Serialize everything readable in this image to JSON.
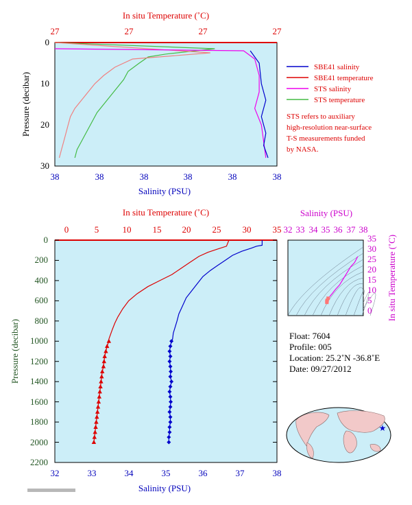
{
  "chart_data": [
    {
      "type": "line",
      "title": "",
      "top_axis": {
        "label": "In situ Temperature (˚C)",
        "ticks": [
          "27",
          "27",
          "27",
          "27"
        ]
      },
      "bottom_axis": {
        "label": "Salinity (PSU)",
        "ticks": [
          "38",
          "38",
          "38",
          "38",
          "38",
          "38"
        ]
      },
      "ylabel": "Pressure (decibar)",
      "ylim": [
        30,
        0
      ],
      "yticks": [
        "0",
        "10",
        "20",
        "30"
      ],
      "grid": false,
      "legend_position": "right",
      "legend": [
        {
          "name": "SBE41 salinity",
          "color": "#0000cc"
        },
        {
          "name": "SBE41 temperature",
          "color": "#dd0000"
        },
        {
          "name": "STS salinity",
          "color": "#ee00ee"
        },
        {
          "name": "STS temperature",
          "color": "#44bb44"
        }
      ],
      "note": [
        "STS refers to auxiliary",
        "high-resolution near-surface",
        "T-S measurements funded",
        "by NASA."
      ],
      "series": [
        {
          "name": "STS temperature",
          "color": "#44bb44",
          "points": [
            [
              0.0,
              0
            ],
            [
              0.72,
              1.5
            ],
            [
              0.5,
              2.8
            ],
            [
              0.42,
              3.5
            ],
            [
              0.38,
              5
            ],
            [
              0.33,
              7
            ],
            [
              0.31,
              9
            ],
            [
              0.28,
              11
            ],
            [
              0.25,
              13
            ],
            [
              0.22,
              15
            ],
            [
              0.19,
              17
            ],
            [
              0.17,
              19
            ],
            [
              0.15,
              21
            ],
            [
              0.12,
              24
            ],
            [
              0.1,
              26
            ],
            [
              0.09,
              28
            ]
          ]
        },
        {
          "name": "SBE41 temperature",
          "color": "#f08080",
          "points": [
            [
              0.0,
              0
            ],
            [
              0.7,
              2.5
            ],
            [
              0.35,
              4
            ],
            [
              0.27,
              6
            ],
            [
              0.22,
              8
            ],
            [
              0.18,
              10
            ],
            [
              0.15,
              12
            ],
            [
              0.12,
              14
            ],
            [
              0.09,
              16
            ],
            [
              0.07,
              18
            ],
            [
              0.06,
              20
            ],
            [
              0.05,
              22
            ],
            [
              0.04,
              24
            ],
            [
              0.03,
              26
            ],
            [
              0.02,
              28
            ]
          ]
        },
        {
          "name": "STS salinity",
          "color": "#ee00ee",
          "points": [
            [
              0.0,
              1.5
            ],
            [
              0.85,
              2
            ],
            [
              0.9,
              4
            ],
            [
              0.92,
              8
            ],
            [
              0.92,
              12
            ],
            [
              0.9,
              16
            ],
            [
              0.93,
              20
            ],
            [
              0.94,
              24
            ],
            [
              0.95,
              28
            ]
          ]
        },
        {
          "name": "SBE41 salinity",
          "color": "#0000cc",
          "points": [
            [
              0.88,
              2
            ],
            [
              0.92,
              5
            ],
            [
              0.93,
              10
            ],
            [
              0.95,
              14
            ],
            [
              0.93,
              18
            ],
            [
              0.95,
              22
            ],
            [
              0.94,
              25
            ],
            [
              0.96,
              28
            ]
          ]
        }
      ]
    },
    {
      "type": "line",
      "title": "",
      "top_axis": {
        "label": "In situ Temperature (˚C)",
        "range": [
          -2,
          35
        ],
        "ticks": [
          0,
          5,
          10,
          15,
          20,
          25,
          30,
          35
        ]
      },
      "bottom_axis": {
        "label": "Salinity (PSU)",
        "range": [
          32,
          38
        ],
        "ticks": [
          32,
          33,
          34,
          35,
          36,
          37,
          38
        ]
      },
      "ylabel": "Pressure (decibar)",
      "ylim": [
        2200,
        0
      ],
      "yticks": [
        0,
        200,
        400,
        600,
        800,
        1000,
        1200,
        1400,
        1600,
        1800,
        2000,
        2200
      ],
      "grid": false,
      "series": [
        {
          "name": "Temperature",
          "color": "#dd0000",
          "points": [
            [
              27.0,
              0
            ],
            [
              26.6,
              60
            ],
            [
              25.0,
              90
            ],
            [
              23.5,
              120
            ],
            [
              22.0,
              160
            ],
            [
              20.5,
              220
            ],
            [
              19.0,
              280
            ],
            [
              17.5,
              340
            ],
            [
              15.5,
              400
            ],
            [
              13.5,
              460
            ],
            [
              11.7,
              530
            ],
            [
              10.3,
              600
            ],
            [
              9.3,
              680
            ],
            [
              8.5,
              760
            ],
            [
              8.0,
              820
            ],
            [
              7.6,
              880
            ],
            [
              7.3,
              930
            ],
            [
              7.0,
              980
            ]
          ],
          "markers": [
            [
              7.0,
              1000
            ],
            [
              6.7,
              1050
            ],
            [
              6.5,
              1100
            ],
            [
              6.3,
              1150
            ],
            [
              6.2,
              1200
            ],
            [
              6.1,
              1250
            ],
            [
              5.9,
              1300
            ],
            [
              5.8,
              1350
            ],
            [
              5.7,
              1400
            ],
            [
              5.6,
              1450
            ],
            [
              5.5,
              1500
            ],
            [
              5.4,
              1550
            ],
            [
              5.3,
              1600
            ],
            [
              5.2,
              1650
            ],
            [
              5.1,
              1700
            ],
            [
              5.0,
              1750
            ],
            [
              4.9,
              1800
            ],
            [
              4.8,
              1850
            ],
            [
              4.7,
              1900
            ],
            [
              4.6,
              1950
            ],
            [
              4.5,
              2000
            ]
          ]
        },
        {
          "name": "Salinity",
          "color": "#0000cc",
          "points": [
            [
              37.6,
              0
            ],
            [
              37.6,
              50
            ],
            [
              37.45,
              60
            ],
            [
              37.3,
              80
            ],
            [
              37.05,
              110
            ],
            [
              36.8,
              150
            ],
            [
              36.6,
              200
            ],
            [
              36.4,
              250
            ],
            [
              36.2,
              300
            ],
            [
              36.0,
              360
            ],
            [
              35.85,
              430
            ],
            [
              35.7,
              500
            ],
            [
              35.55,
              570
            ],
            [
              35.45,
              650
            ],
            [
              35.35,
              730
            ],
            [
              35.3,
              800
            ],
            [
              35.25,
              860
            ],
            [
              35.2,
              920
            ],
            [
              35.18,
              980
            ]
          ],
          "markers": [
            [
              35.15,
              1000
            ],
            [
              35.12,
              1050
            ],
            [
              35.1,
              1100
            ],
            [
              35.12,
              1150
            ],
            [
              35.1,
              1200
            ],
            [
              35.12,
              1250
            ],
            [
              35.13,
              1300
            ],
            [
              35.12,
              1350
            ],
            [
              35.15,
              1400
            ],
            [
              35.12,
              1450
            ],
            [
              35.1,
              1500
            ],
            [
              35.12,
              1550
            ],
            [
              35.13,
              1600
            ],
            [
              35.12,
              1650
            ],
            [
              35.1,
              1700
            ],
            [
              35.12,
              1750
            ],
            [
              35.12,
              1800
            ],
            [
              35.1,
              1850
            ],
            [
              35.1,
              1900
            ],
            [
              35.08,
              1950
            ],
            [
              35.08,
              2000
            ]
          ]
        }
      ]
    },
    {
      "type": "scatter",
      "title": "",
      "top_axis": {
        "label": "Salinity (PSU)",
        "range": [
          32,
          38
        ],
        "ticks": [
          32,
          33,
          34,
          35,
          36,
          37,
          38
        ]
      },
      "right_axis": {
        "label": "In situ Temperature (˚C)",
        "range": [
          -2,
          35
        ],
        "ticks": [
          0,
          5,
          10,
          15,
          20,
          25,
          30,
          35
        ]
      },
      "grid": false,
      "series": [
        {
          "name": "T-S",
          "color": "#ee00ee",
          "points": [
            [
              37.55,
              27
            ],
            [
              37.3,
              24
            ],
            [
              37.0,
              22
            ],
            [
              36.7,
              19
            ],
            [
              36.4,
              16
            ],
            [
              36.1,
              13
            ],
            [
              35.8,
              11
            ],
            [
              35.55,
              9
            ],
            [
              35.35,
              7.5
            ],
            [
              35.2,
              6.5
            ],
            [
              35.12,
              5.5
            ],
            [
              35.1,
              5
            ],
            [
              35.1,
              4.5
            ]
          ]
        }
      ]
    }
  ],
  "float_info": {
    "float": "Float:  7604",
    "profile": "Profile:  005",
    "location": "Location:  25.2˚N  -36.8˚E",
    "date": "Date:  09/27/2012"
  },
  "map": {
    "marker_color": "#0000cc"
  },
  "colors": {
    "plot_bg": "#cceef8",
    "red": "#dd0000",
    "blue": "#0000bb",
    "magenta": "#cc00cc",
    "green": "#225522"
  }
}
